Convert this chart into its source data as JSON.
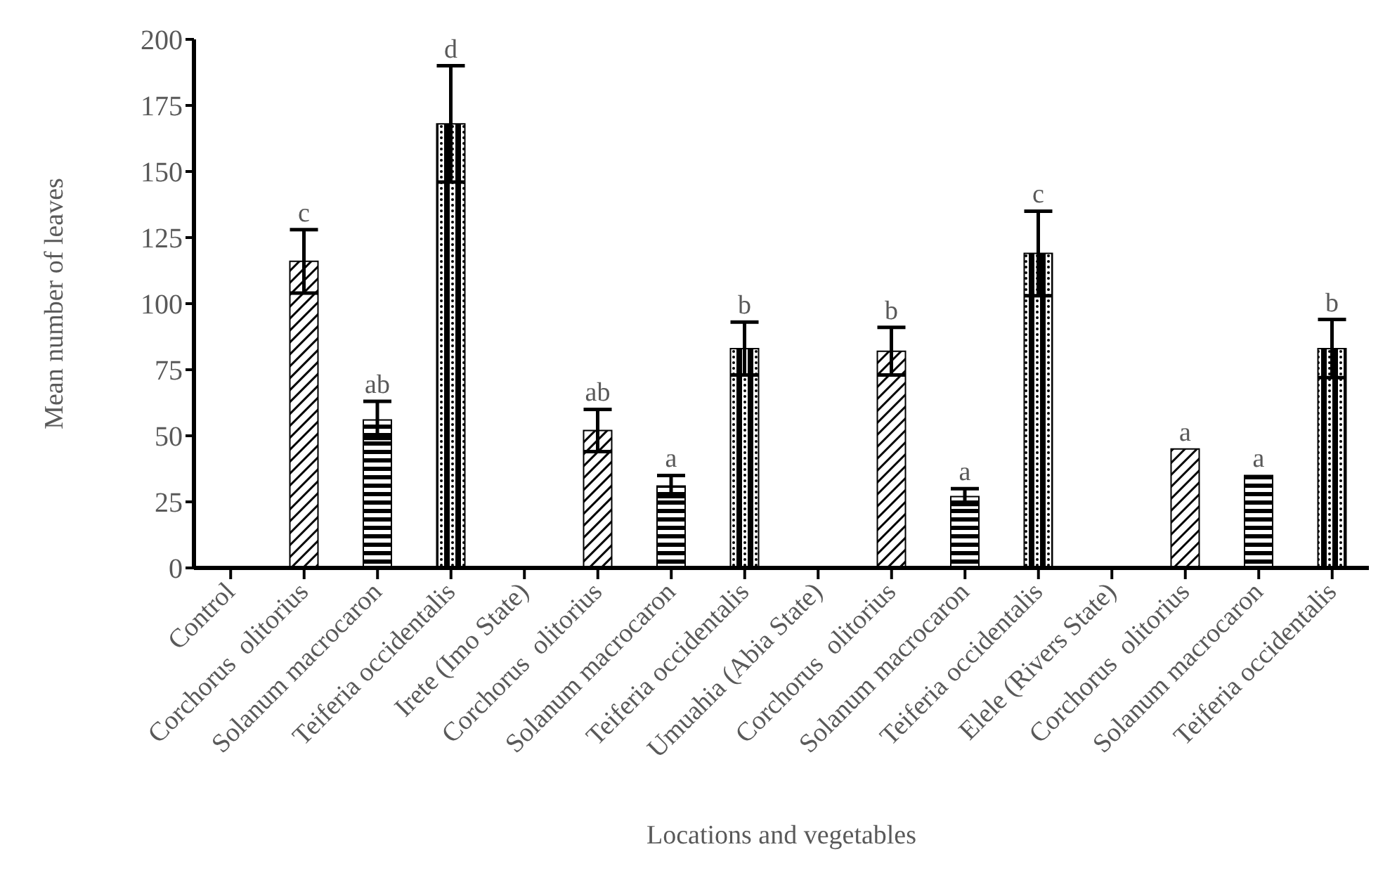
{
  "chart_data": {
    "type": "bar",
    "xlabel": "Locations and vegetables",
    "ylabel": "Mean number of leaves",
    "categories": [
      "Control",
      "Corchorus  olitorius",
      "Solanum macrocaron",
      "Teiferia occidentalis",
      "Irete (Imo State)",
      "Corchorus  olitorius",
      "Solanum macrocaron",
      "Teiferia occidentalis",
      "Umuahia (Abia State)",
      "Corchorus  olitorius",
      "Solanum macrocaron",
      "Teiferia occidentalis",
      "Elele (Rivers State)",
      "Corchorus  olitorius",
      "Solanum macrocaron",
      "Teiferia occidentalis"
    ],
    "values": [
      null,
      116,
      56,
      168,
      null,
      52,
      31,
      83,
      null,
      82,
      27,
      119,
      null,
      45,
      35,
      83
    ],
    "errors": [
      null,
      12,
      7,
      22,
      null,
      8,
      4,
      10,
      null,
      9,
      3,
      16,
      null,
      null,
      null,
      11
    ],
    "value_labels": [
      null,
      "c",
      "ab",
      "d",
      null,
      "ab",
      "a",
      "b",
      null,
      "b",
      "a",
      "c",
      null,
      "a",
      "a",
      "b"
    ],
    "color": "#000000",
    "ylim": [
      0,
      200
    ],
    "yticks": [
      0,
      25,
      50,
      75,
      100,
      125,
      150,
      175,
      200
    ]
  }
}
